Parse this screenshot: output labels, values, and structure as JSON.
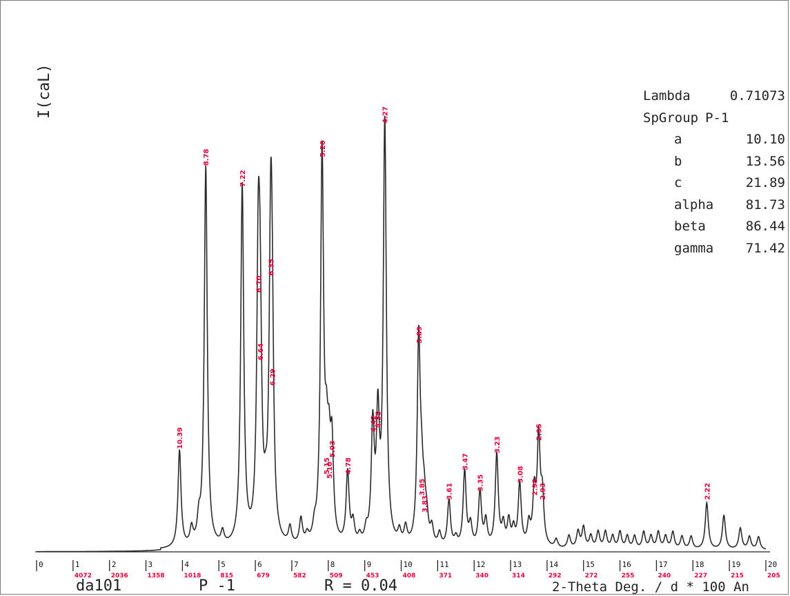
{
  "chart_data": {
    "type": "line",
    "ylabel": "I(caL)",
    "xlabel": "2-Theta Deg. / d * 100 An",
    "xlim": [
      0,
      20
    ],
    "x_ticks": [
      {
        "deg": "0",
        "d": ""
      },
      {
        "deg": "1",
        "d": "4072"
      },
      {
        "deg": "2",
        "d": "2036"
      },
      {
        "deg": "3",
        "d": "1358"
      },
      {
        "deg": "4",
        "d": "1018"
      },
      {
        "deg": "5",
        "d": "815"
      },
      {
        "deg": "6",
        "d": "679"
      },
      {
        "deg": "7",
        "d": "582"
      },
      {
        "deg": "8",
        "d": "509"
      },
      {
        "deg": "9",
        "d": "453"
      },
      {
        "deg": "10",
        "d": "408"
      },
      {
        "deg": "11",
        "d": "371"
      },
      {
        "deg": "12",
        "d": "340"
      },
      {
        "deg": "13",
        "d": "314"
      },
      {
        "deg": "14",
        "d": "292"
      },
      {
        "deg": "15",
        "d": "272"
      },
      {
        "deg": "16",
        "d": "255"
      },
      {
        "deg": "17",
        "d": "240"
      },
      {
        "deg": "18",
        "d": "227"
      },
      {
        "deg": "19",
        "d": "215"
      },
      {
        "deg": "20",
        "d": "205"
      }
    ],
    "peaks": [
      {
        "x": 3.92,
        "y": 23,
        "label": "10.39"
      },
      {
        "x": 4.64,
        "y": 90,
        "label": "8.78"
      },
      {
        "x": 5.64,
        "y": 85,
        "label": "7.22"
      },
      {
        "x": 6.08,
        "y": 60,
        "label": "6.70"
      },
      {
        "x": 6.13,
        "y": 44,
        "label": "6.64"
      },
      {
        "x": 6.42,
        "y": 64,
        "label": "6.35"
      },
      {
        "x": 6.46,
        "y": 38,
        "label": "6.29"
      },
      {
        "x": 7.83,
        "y": 92,
        "label": "5.20"
      },
      {
        "x": 7.95,
        "y": 17,
        "label": "5.15"
      },
      {
        "x": 8.02,
        "y": 16,
        "label": "5.10"
      },
      {
        "x": 8.1,
        "y": 21,
        "label": "5.03"
      },
      {
        "x": 8.53,
        "y": 17,
        "label": "4.78"
      },
      {
        "x": 9.22,
        "y": 27,
        "label": "4.42"
      },
      {
        "x": 9.36,
        "y": 28,
        "label": "4.35"
      },
      {
        "x": 9.55,
        "y": 100,
        "label": "4.27"
      },
      {
        "x": 10.48,
        "y": 48,
        "label": "3.89"
      },
      {
        "x": 10.56,
        "y": 12,
        "label": "3.85"
      },
      {
        "x": 10.63,
        "y": 8,
        "label": "3.83"
      },
      {
        "x": 11.31,
        "y": 11,
        "label": "3.61"
      },
      {
        "x": 11.74,
        "y": 18,
        "label": "3.47"
      },
      {
        "x": 12.16,
        "y": 13,
        "label": "3.35"
      },
      {
        "x": 12.62,
        "y": 22,
        "label": "3.23"
      },
      {
        "x": 13.25,
        "y": 15,
        "label": "3.08"
      },
      {
        "x": 13.65,
        "y": 12,
        "label": "2.98"
      },
      {
        "x": 13.77,
        "y": 25,
        "label": "2.95"
      },
      {
        "x": 13.87,
        "y": 11,
        "label": "2.93"
      },
      {
        "x": 18.38,
        "y": 11,
        "label": "2.22"
      }
    ],
    "minor_peaks": [
      {
        "x": 4.25,
        "y": 4
      },
      {
        "x": 4.45,
        "y": 5
      },
      {
        "x": 5.1,
        "y": 3
      },
      {
        "x": 6.28,
        "y": 5
      },
      {
        "x": 6.95,
        "y": 4
      },
      {
        "x": 7.25,
        "y": 6
      },
      {
        "x": 7.42,
        "y": 2
      },
      {
        "x": 7.62,
        "y": 3
      },
      {
        "x": 8.68,
        "y": 5
      },
      {
        "x": 8.86,
        "y": 2
      },
      {
        "x": 9.04,
        "y": 3
      },
      {
        "x": 9.95,
        "y": 3
      },
      {
        "x": 10.12,
        "y": 4
      },
      {
        "x": 10.7,
        "y": 5
      },
      {
        "x": 10.84,
        "y": 4
      },
      {
        "x": 11.05,
        "y": 3
      },
      {
        "x": 11.5,
        "y": 2
      },
      {
        "x": 11.9,
        "y": 5
      },
      {
        "x": 12.32,
        "y": 6
      },
      {
        "x": 12.8,
        "y": 5
      },
      {
        "x": 12.95,
        "y": 6
      },
      {
        "x": 13.08,
        "y": 4
      },
      {
        "x": 13.5,
        "y": 5
      },
      {
        "x": 14.25,
        "y": 2
      },
      {
        "x": 14.6,
        "y": 3
      },
      {
        "x": 14.85,
        "y": 4
      },
      {
        "x": 15.0,
        "y": 5
      },
      {
        "x": 15.2,
        "y": 3
      },
      {
        "x": 15.4,
        "y": 4
      },
      {
        "x": 15.6,
        "y": 4
      },
      {
        "x": 15.8,
        "y": 3
      },
      {
        "x": 16.0,
        "y": 4
      },
      {
        "x": 16.2,
        "y": 3
      },
      {
        "x": 16.4,
        "y": 3
      },
      {
        "x": 16.65,
        "y": 4
      },
      {
        "x": 16.85,
        "y": 3
      },
      {
        "x": 17.05,
        "y": 4
      },
      {
        "x": 17.25,
        "y": 3
      },
      {
        "x": 17.45,
        "y": 4
      },
      {
        "x": 17.7,
        "y": 3
      },
      {
        "x": 17.95,
        "y": 3
      },
      {
        "x": 18.85,
        "y": 8
      },
      {
        "x": 19.3,
        "y": 5
      },
      {
        "x": 19.55,
        "y": 3
      },
      {
        "x": 19.8,
        "y": 3
      }
    ]
  },
  "params": {
    "lambda_label": "Lambda",
    "lambda_value": "0.71073",
    "spgroup_label": "SpGroup",
    "spgroup_value": "P-1",
    "cell": [
      {
        "name": "a",
        "value": "10.10"
      },
      {
        "name": "b",
        "value": "13.56"
      },
      {
        "name": "c",
        "value": "21.89"
      },
      {
        "name": "alpha",
        "value": "81.73"
      },
      {
        "name": "beta",
        "value": "86.44"
      },
      {
        "name": "gamma",
        "value": "71.42"
      }
    ]
  },
  "footer": {
    "sample": "da101",
    "spacegroup": "P -1",
    "rfactor": "R = 0.04",
    "axis_title": "2-Theta Deg. / d * 100 An"
  },
  "colors": {
    "line": "#2a2a2a",
    "peak_label": "#e8003a"
  }
}
